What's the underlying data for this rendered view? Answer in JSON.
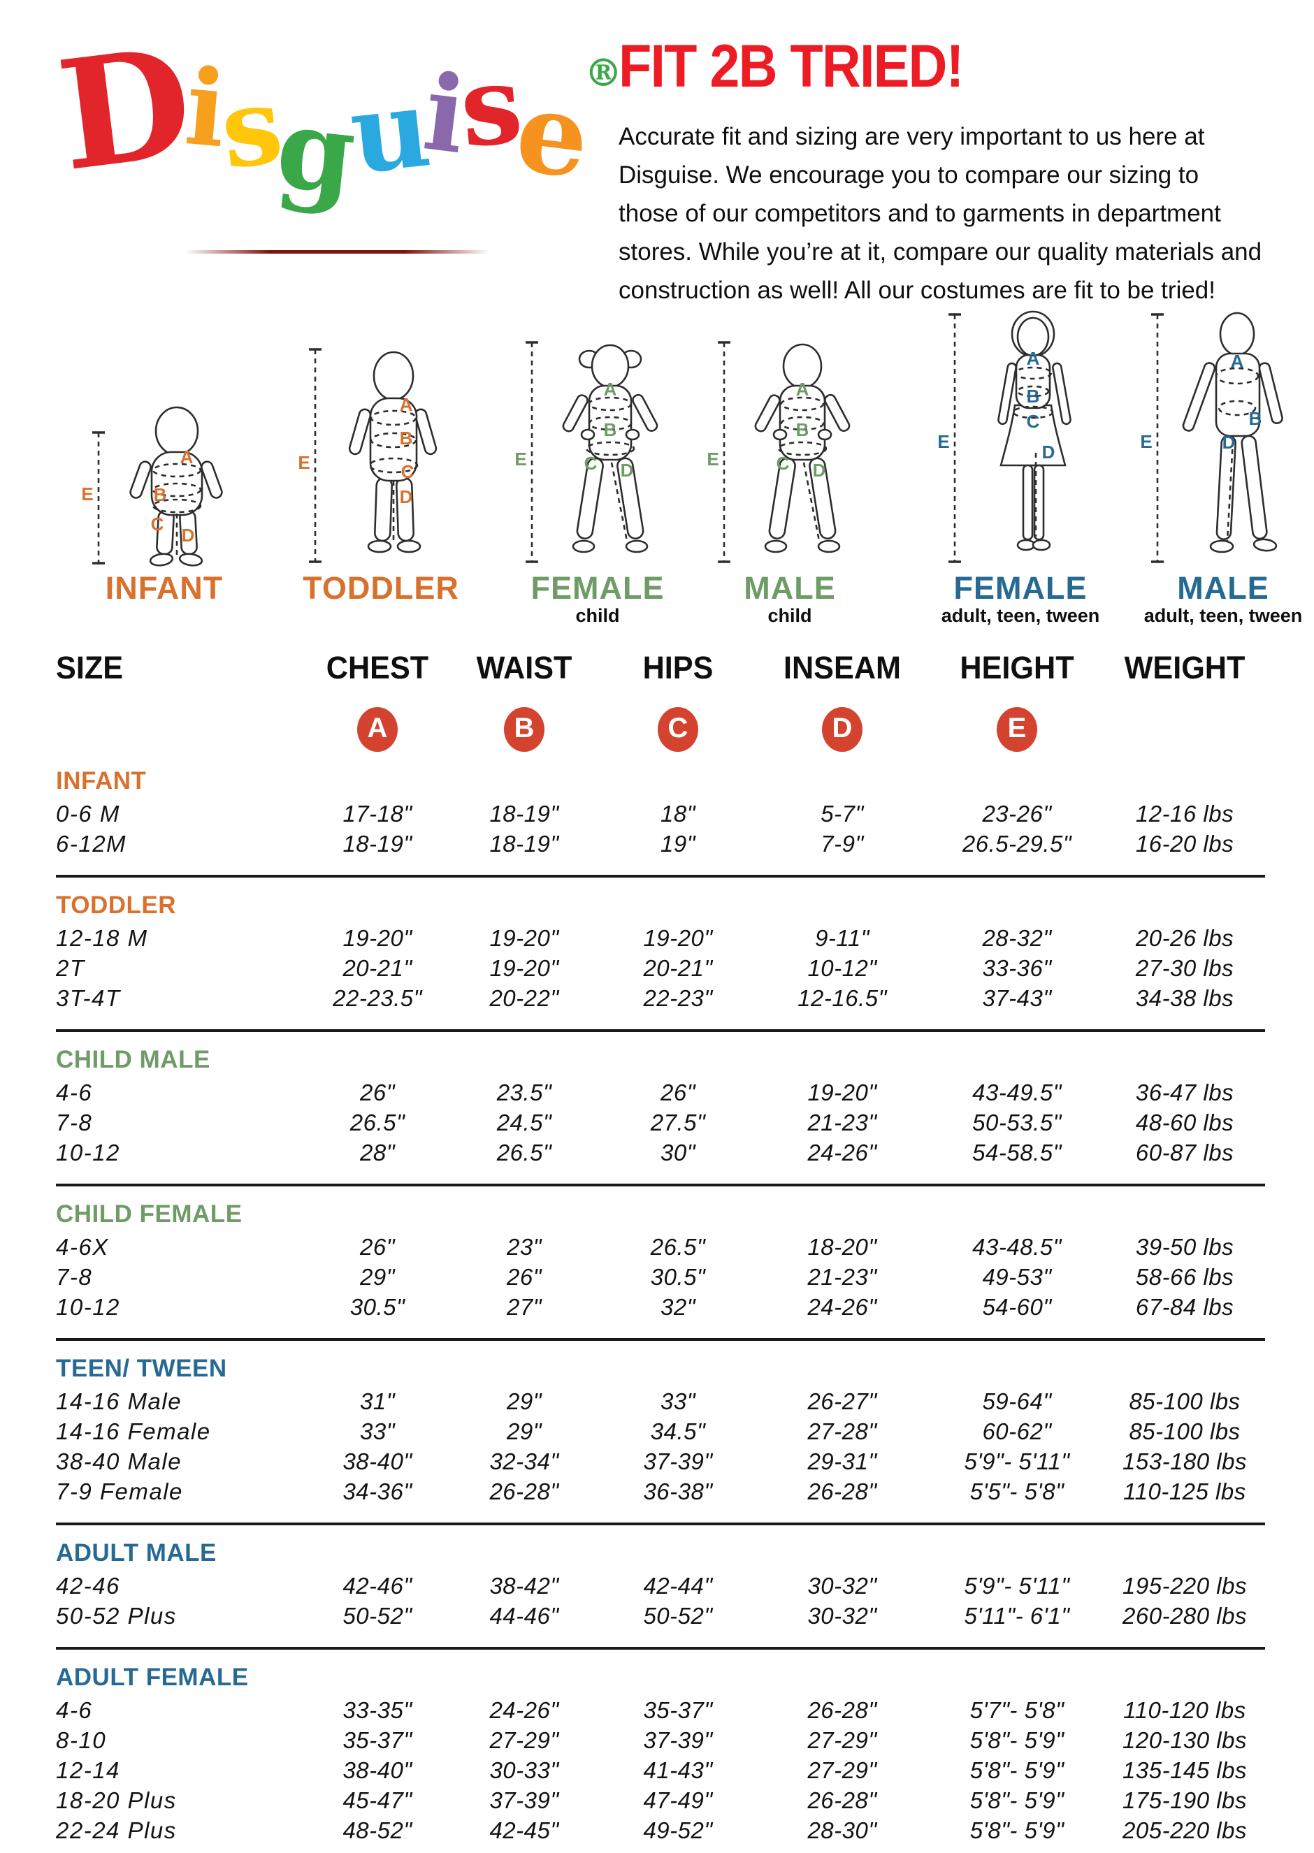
{
  "logo": {
    "letters": [
      {
        "ch": "D",
        "color": "#e2252b"
      },
      {
        "ch": "i",
        "color": "#f6a01e"
      },
      {
        "ch": "s",
        "color": "#ffc60a"
      },
      {
        "ch": "g",
        "color": "#3aa748"
      },
      {
        "ch": "u",
        "color": "#2aa9e0"
      },
      {
        "ch": "i",
        "color": "#8b67ab"
      },
      {
        "ch": "s",
        "color": "#e2252b"
      },
      {
        "ch": "e",
        "color": "#f6921e"
      },
      {
        "ch": "®",
        "color": "#3aa748"
      }
    ]
  },
  "intro": {
    "heading": "FIT 2B TRIED!",
    "heading_color": "#ed1c24",
    "body": "Accurate fit and sizing are very important to us here at Disguise. We encourage you to compare our sizing to those of our competitors and to garments in department stores. While you’re at it, compare our quality materials and construction as well! All our costumes are fit to be tried!"
  },
  "measure_labels": [
    "A",
    "B",
    "C",
    "D",
    "E"
  ],
  "figures": [
    {
      "name": "INFANT",
      "subtitle": "",
      "color": "#d9712e"
    },
    {
      "name": "TODDLER",
      "subtitle": "",
      "color": "#d9712e"
    },
    {
      "name": "FEMALE",
      "subtitle": "child",
      "color": "#6f9b67"
    },
    {
      "name": "MALE",
      "subtitle": "child",
      "color": "#6f9b67"
    },
    {
      "name": "FEMALE",
      "subtitle": "adult, teen, tween",
      "color": "#266a93"
    },
    {
      "name": "MALE",
      "subtitle": "adult, teen, tween",
      "color": "#266a93"
    }
  ],
  "colors": {
    "orange": "#d9712e",
    "green": "#6f9b67",
    "blue": "#266a93"
  },
  "table": {
    "columns": [
      "SIZE",
      "CHEST",
      "WAIST",
      "HIPS",
      "INSEAM",
      "HEIGHT",
      "WEIGHT"
    ],
    "circle_letters": [
      "A",
      "B",
      "C",
      "D",
      "E"
    ],
    "circle_color": "#d4432f",
    "sections": [
      {
        "name": "INFANT",
        "color": "orange",
        "rows": [
          [
            "0-6 M",
            "17-18\"",
            "18-19\"",
            "18\"",
            "5-7\"",
            "23-26\"",
            "12-16 lbs"
          ],
          [
            "6-12M",
            "18-19\"",
            "18-19\"",
            "19\"",
            "7-9\"",
            "26.5-29.5\"",
            "16-20 lbs"
          ]
        ]
      },
      {
        "name": "TODDLER",
        "color": "orange",
        "rows": [
          [
            "12-18 M",
            "19-20\"",
            "19-20\"",
            "19-20\"",
            "9-11\"",
            "28-32\"",
            "20-26 lbs"
          ],
          [
            "2T",
            "20-21\"",
            "19-20\"",
            "20-21\"",
            "10-12\"",
            "33-36\"",
            "27-30 lbs"
          ],
          [
            "3T-4T",
            "22-23.5\"",
            "20-22\"",
            "22-23\"",
            "12-16.5\"",
            "37-43\"",
            "34-38 lbs"
          ]
        ]
      },
      {
        "name": "CHILD MALE",
        "color": "green",
        "rows": [
          [
            "4-6",
            "26\"",
            "23.5\"",
            "26\"",
            "19-20\"",
            "43-49.5\"",
            "36-47 lbs"
          ],
          [
            "7-8",
            "26.5\"",
            "24.5\"",
            "27.5\"",
            "21-23\"",
            "50-53.5\"",
            "48-60 lbs"
          ],
          [
            "10-12",
            "28\"",
            "26.5\"",
            "30\"",
            "24-26\"",
            "54-58.5\"",
            "60-87 lbs"
          ]
        ]
      },
      {
        "name": "CHILD FEMALE",
        "color": "green",
        "rows": [
          [
            "4-6X",
            "26\"",
            "23\"",
            "26.5\"",
            "18-20\"",
            "43-48.5\"",
            "39-50 lbs"
          ],
          [
            "7-8",
            "29\"",
            "26\"",
            "30.5\"",
            "21-23\"",
            "49-53\"",
            "58-66 lbs"
          ],
          [
            "10-12",
            "30.5\"",
            "27\"",
            "32\"",
            "24-26\"",
            "54-60\"",
            "67-84 lbs"
          ]
        ]
      },
      {
        "name": "TEEN/ TWEEN",
        "color": "blue",
        "rows": [
          [
            "14-16 Male",
            "31\"",
            "29\"",
            "33\"",
            "26-27\"",
            "59-64\"",
            "85-100 lbs"
          ],
          [
            "14-16 Female",
            "33\"",
            "29\"",
            "34.5\"",
            "27-28\"",
            "60-62\"",
            "85-100 lbs"
          ],
          [
            "38-40 Male",
            "38-40\"",
            "32-34\"",
            "37-39\"",
            "29-31\"",
            "5'9\"- 5'11\"",
            "153-180 lbs"
          ],
          [
            "7-9 Female",
            "34-36\"",
            "26-28\"",
            "36-38\"",
            "26-28\"",
            "5'5\"- 5'8\"",
            "110-125 lbs"
          ]
        ]
      },
      {
        "name": "ADULT MALE",
        "color": "blue",
        "rows": [
          [
            "42-46",
            "42-46\"",
            "38-42\"",
            "42-44\"",
            "30-32\"",
            "5'9\"- 5'11\"",
            "195-220 lbs"
          ],
          [
            "50-52 Plus",
            "50-52\"",
            "44-46\"",
            "50-52\"",
            "30-32\"",
            "5'11\"- 6'1\"",
            "260-280 lbs"
          ]
        ]
      },
      {
        "name": "ADULT FEMALE",
        "color": "blue",
        "rows": [
          [
            "4-6",
            "33-35\"",
            "24-26\"",
            "35-37\"",
            "26-28\"",
            "5'7\"- 5'8\"",
            "110-120 lbs"
          ],
          [
            "8-10",
            "35-37\"",
            "27-29\"",
            "37-39\"",
            "27-29\"",
            "5'8\"- 5'9\"",
            "120-130 lbs"
          ],
          [
            "12-14",
            "38-40\"",
            "30-33\"",
            "41-43\"",
            "27-29\"",
            "5'8\"- 5'9\"",
            "135-145 lbs"
          ],
          [
            "18-20 Plus",
            "45-47\"",
            "37-39\"",
            "47-49\"",
            "26-28\"",
            "5'8\"- 5'9\"",
            "175-190 lbs"
          ],
          [
            "22-24 Plus",
            "48-52\"",
            "42-45\"",
            "49-52\"",
            "28-30\"",
            "5'8\"- 5'9\"",
            "205-220 lbs"
          ]
        ]
      }
    ]
  }
}
